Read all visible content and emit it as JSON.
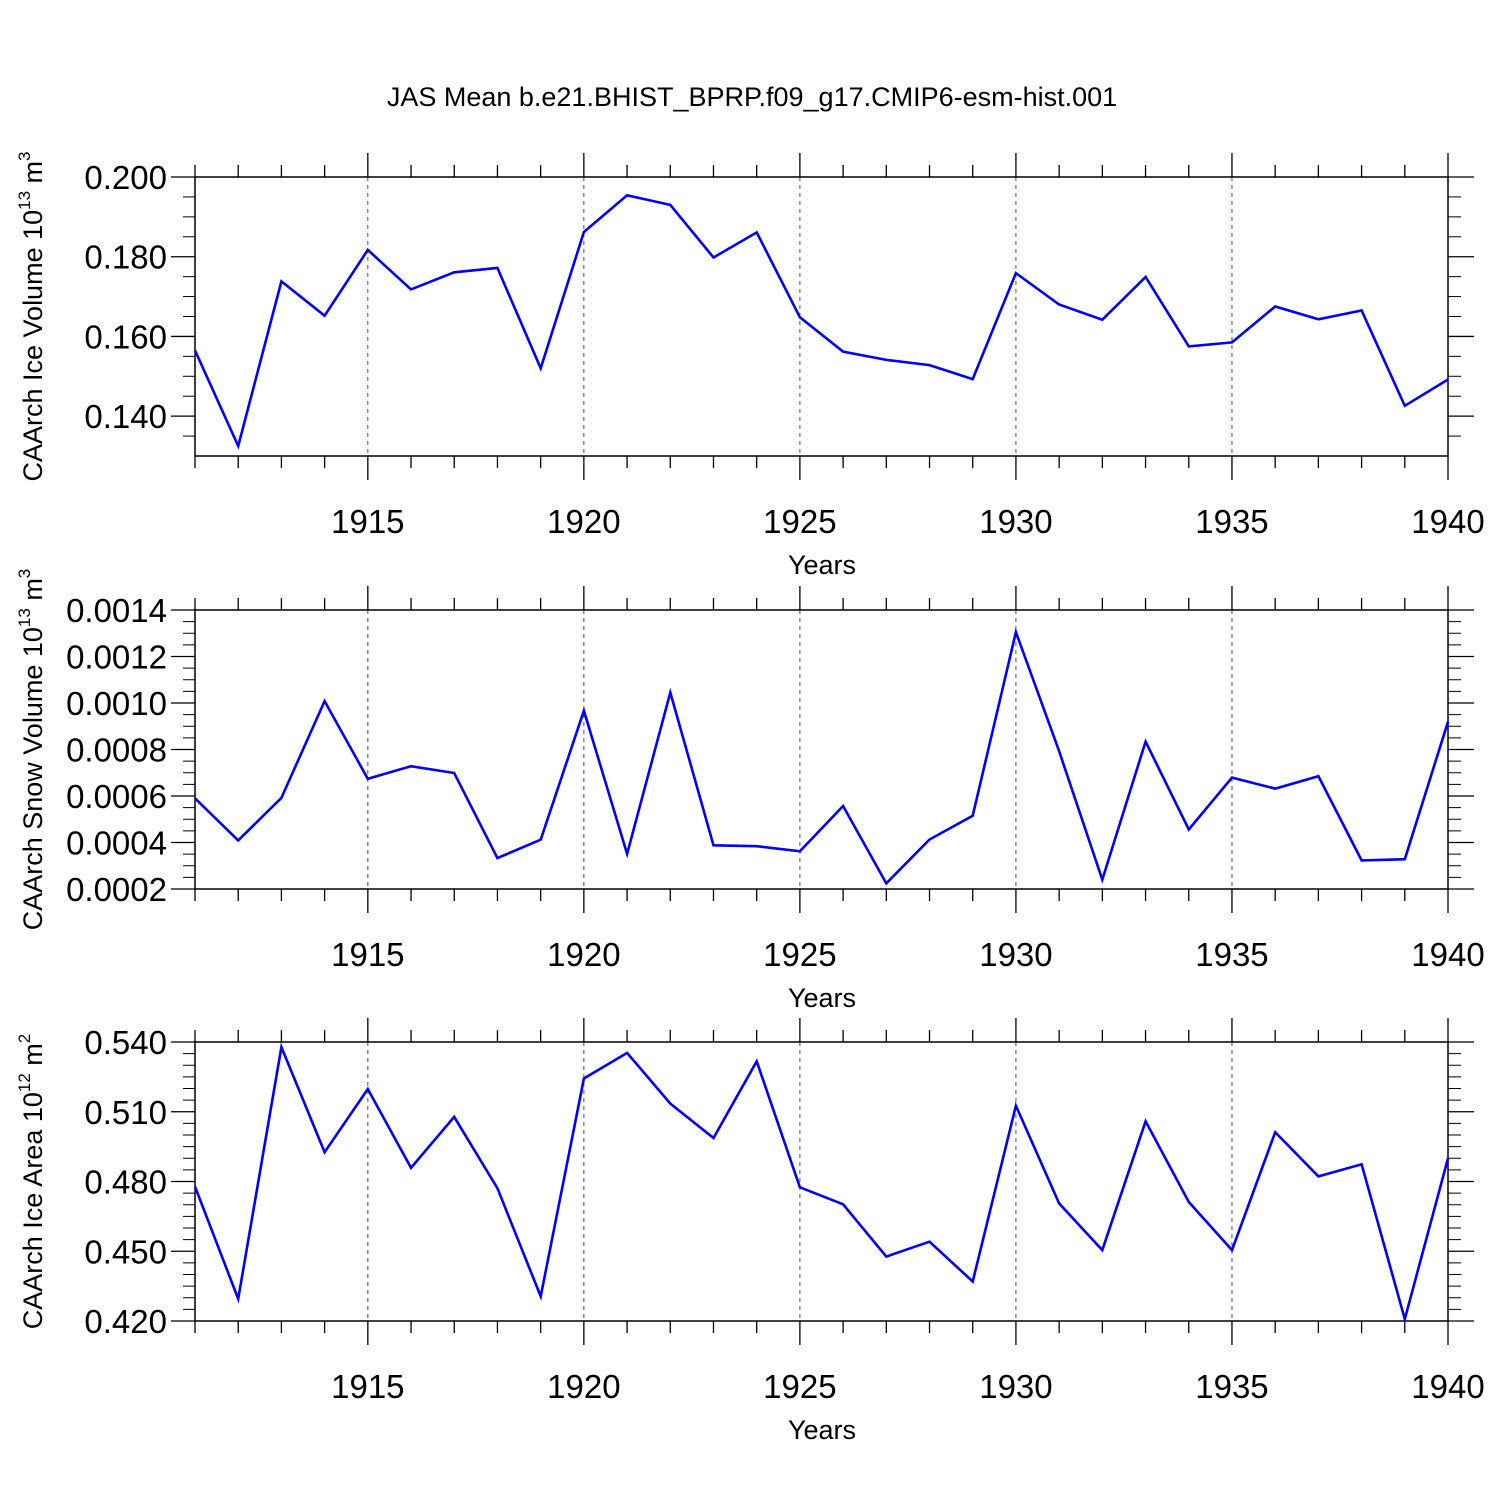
{
  "title": "JAS Mean b.e21.BHIST_BPRP.f09_g17.CMIP6-esm-hist.001",
  "colors": {
    "line": "#0000ff",
    "axis": "#000000",
    "grid": "#555555"
  },
  "chart_data": [
    {
      "type": "line",
      "ylabel_main": "CAArch Ice Volume 10",
      "ylabel_sup1": "13",
      "ylabel_unit": " m",
      "ylabel_sup2": "3",
      "xlabel": "Years",
      "xlim": [
        1911,
        1940
      ],
      "ylim": [
        0.13,
        0.2
      ],
      "yticks": [
        0.14,
        0.16,
        0.18,
        0.2
      ],
      "ytick_labels": [
        "0.140",
        "0.160",
        "0.180",
        "0.200"
      ],
      "yminor": [
        0.135,
        0.145,
        0.15,
        0.155,
        0.165,
        0.17,
        0.175,
        0.185,
        0.19,
        0.195
      ],
      "xticks": [
        1915,
        1920,
        1925,
        1930,
        1935,
        1940
      ],
      "xtick_labels": [
        "1915",
        "1920",
        "1925",
        "1930",
        "1935",
        "1940"
      ],
      "x": [
        1911,
        1912,
        1913,
        1914,
        1915,
        1916,
        1917,
        1918,
        1919,
        1920,
        1921,
        1922,
        1923,
        1924,
        1925,
        1926,
        1927,
        1928,
        1929,
        1930,
        1931,
        1932,
        1933,
        1934,
        1935,
        1936,
        1937,
        1938,
        1939,
        1940
      ],
      "values": [
        0.1565,
        0.1325,
        0.1738,
        0.1652,
        0.1817,
        0.1718,
        0.1761,
        0.1772,
        0.152,
        0.1862,
        0.1954,
        0.193,
        0.1798,
        0.1861,
        0.1648,
        0.1562,
        0.1541,
        0.1528,
        0.1493,
        0.1759,
        0.168,
        0.1642,
        0.1749,
        0.1575,
        0.1585,
        0.1675,
        0.1643,
        0.1665,
        0.1426,
        0.1492
      ]
    },
    {
      "type": "line",
      "ylabel_main": "CAArch Snow Volume 10",
      "ylabel_sup1": "13",
      "ylabel_unit": " m",
      "ylabel_sup2": "3",
      "xlabel": "Years",
      "xlim": [
        1911,
        1940
      ],
      "ylim": [
        0.0002,
        0.0014
      ],
      "yticks": [
        0.0002,
        0.0004,
        0.0006,
        0.0008,
        0.001,
        0.0012,
        0.0014
      ],
      "ytick_labels": [
        "0.0002",
        "0.0004",
        "0.0006",
        "0.0008",
        "0.0010",
        "0.0012",
        "0.0014"
      ],
      "yminor": [
        0.00025,
        0.0003,
        0.00035,
        0.00045,
        0.0005,
        0.00055,
        0.00065,
        0.0007,
        0.00075,
        0.00085,
        0.0009,
        0.00095,
        0.00105,
        0.0011,
        0.00115,
        0.00125,
        0.0013,
        0.00135
      ],
      "xticks": [
        1915,
        1920,
        1925,
        1930,
        1935,
        1940
      ],
      "xtick_labels": [
        "1915",
        "1920",
        "1925",
        "1930",
        "1935",
        "1940"
      ],
      "x": [
        1911,
        1912,
        1913,
        1914,
        1915,
        1916,
        1917,
        1918,
        1919,
        1920,
        1921,
        1922,
        1923,
        1924,
        1925,
        1926,
        1927,
        1928,
        1929,
        1930,
        1931,
        1932,
        1933,
        1934,
        1935,
        1936,
        1937,
        1938,
        1939,
        1940
      ],
      "values": [
        0.00059,
        0.000409,
        0.000592,
        0.001008,
        0.000674,
        0.000728,
        0.000699,
        0.000333,
        0.000412,
        0.000967,
        0.000351,
        0.001045,
        0.000388,
        0.000384,
        0.000362,
        0.000557,
        0.000224,
        0.000413,
        0.000515,
        0.001305,
        0.000793,
        0.00024,
        0.000834,
        0.000456,
        0.000679,
        0.000632,
        0.000685,
        0.000323,
        0.000328,
        0.000919
      ]
    },
    {
      "type": "line",
      "ylabel_main": "CAArch Ice Area 10",
      "ylabel_sup1": "12",
      "ylabel_unit": " m",
      "ylabel_sup2": "2",
      "xlabel": "Years",
      "xlim": [
        1911,
        1940
      ],
      "ylim": [
        0.42,
        0.54
      ],
      "yticks": [
        0.42,
        0.45,
        0.48,
        0.51,
        0.54
      ],
      "ytick_labels": [
        "0.420",
        "0.450",
        "0.480",
        "0.510",
        "0.540"
      ],
      "yminor": [
        0.425,
        0.43,
        0.435,
        0.44,
        0.445,
        0.455,
        0.46,
        0.465,
        0.47,
        0.475,
        0.485,
        0.49,
        0.495,
        0.5,
        0.505,
        0.515,
        0.52,
        0.525,
        0.53,
        0.535
      ],
      "xticks": [
        1915,
        1920,
        1925,
        1930,
        1935,
        1940
      ],
      "xtick_labels": [
        "1915",
        "1920",
        "1925",
        "1930",
        "1935",
        "1940"
      ],
      "x": [
        1911,
        1912,
        1913,
        1914,
        1915,
        1916,
        1917,
        1918,
        1919,
        1920,
        1921,
        1922,
        1923,
        1924,
        1925,
        1926,
        1927,
        1928,
        1929,
        1930,
        1931,
        1932,
        1933,
        1934,
        1935,
        1936,
        1937,
        1938,
        1939,
        1940
      ],
      "values": [
        0.4778,
        0.4295,
        0.5378,
        0.4926,
        0.5198,
        0.4859,
        0.5078,
        0.4771,
        0.4306,
        0.5243,
        0.5353,
        0.5135,
        0.4987,
        0.5317,
        0.4775,
        0.4702,
        0.4477,
        0.4541,
        0.437,
        0.5126,
        0.4706,
        0.4505,
        0.5059,
        0.4712,
        0.4505,
        0.5012,
        0.4822,
        0.4874,
        0.4208,
        0.49
      ]
    }
  ]
}
